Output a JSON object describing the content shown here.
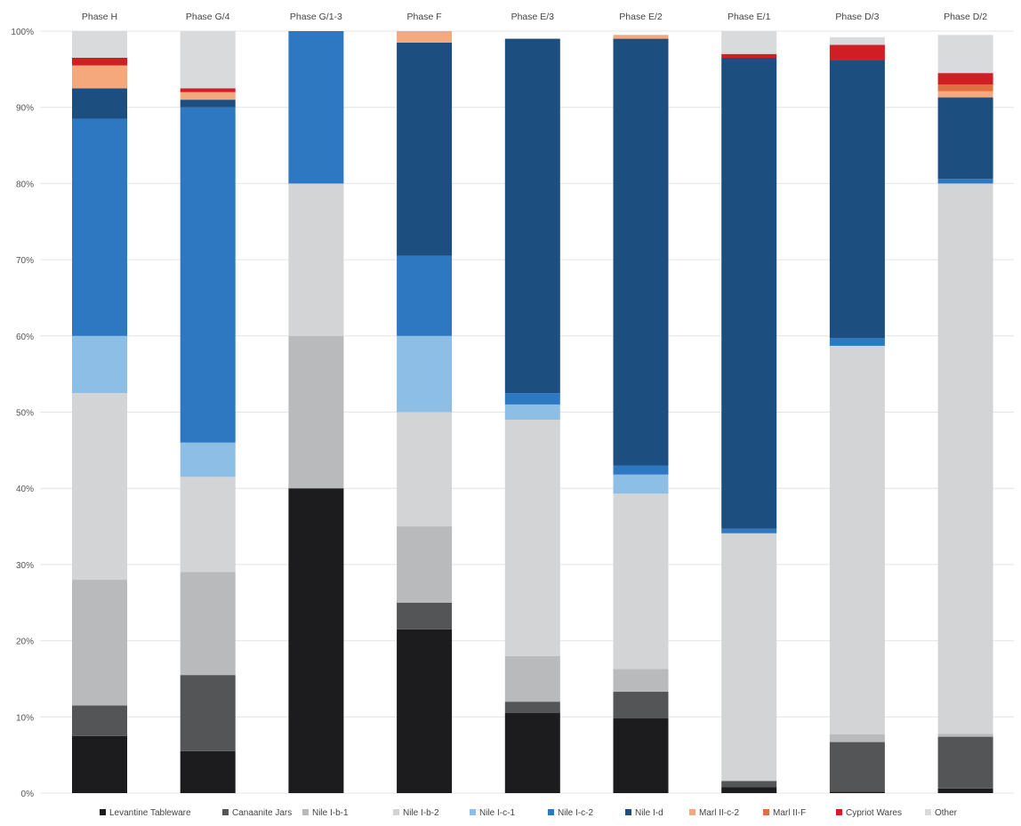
{
  "chart_data": {
    "type": "bar",
    "stacked": true,
    "percent_stacked": true,
    "title": "",
    "xlabel": "",
    "ylabel": "",
    "ylim": [
      0,
      100
    ],
    "yticks": [
      "0%",
      "10%",
      "20%",
      "30%",
      "40%",
      "50%",
      "60%",
      "70%",
      "80%",
      "90%",
      "100%"
    ],
    "category_position": "top",
    "legend_position": "bottom",
    "grid": true,
    "categories": [
      "Phase H",
      "Phase G/4",
      "Phase G/1-3",
      "Phase F",
      "Phase E/3",
      "Phase E/2",
      "Phase E/1",
      "Phase D/3",
      "Phase D/2"
    ],
    "series": [
      {
        "name": "Levantine Tableware",
        "color": "#1c1c1e",
        "values": [
          7.5,
          5.5,
          40.0,
          21.5,
          10.5,
          9.8,
          0.8,
          0.2,
          0.6
        ]
      },
      {
        "name": "Canaanite Jars",
        "color": "#545557",
        "values": [
          4.0,
          10.0,
          0.0,
          3.5,
          1.5,
          3.5,
          0.8,
          6.5,
          6.8
        ]
      },
      {
        "name": "Nile I-b-1",
        "color": "#b9babc",
        "values": [
          16.5,
          13.5,
          20.0,
          10.0,
          6.0,
          3.0,
          0.0,
          1.0,
          0.4
        ]
      },
      {
        "name": "Nile I-b-2",
        "color": "#d3d4d6",
        "values": [
          24.5,
          12.5,
          20.0,
          15.0,
          31.0,
          23.0,
          32.5,
          51.0,
          72.2
        ]
      },
      {
        "name": "Nile I-c-1",
        "color": "#8dbfe6",
        "values": [
          7.5,
          4.5,
          0.0,
          10.0,
          2.0,
          2.5,
          0.0,
          0.0,
          0.0
        ]
      },
      {
        "name": "Nile I-c-2",
        "color": "#2e78c2",
        "values": [
          28.5,
          44.0,
          20.0,
          10.5,
          1.5,
          1.2,
          0.6,
          1.0,
          0.6
        ]
      },
      {
        "name": "Nile I-d",
        "color": "#1c4e80",
        "values": [
          4.0,
          1.0,
          0.0,
          28.0,
          46.5,
          56.0,
          61.8,
          36.5,
          10.7
        ]
      },
      {
        "name": "Marl II-c-2",
        "color": "#f5a87c",
        "values": [
          3.0,
          1.0,
          0.0,
          1.5,
          0.0,
          0.5,
          0.0,
          0.0,
          0.8
        ]
      },
      {
        "name": "Marl II-F",
        "color": "#e07040",
        "values": [
          0.0,
          0.0,
          0.0,
          0.0,
          0.0,
          0.0,
          0.0,
          0.0,
          0.9
        ]
      },
      {
        "name": "Cypriot Wares",
        "color": "#d01f24",
        "values": [
          1.0,
          0.5,
          0.0,
          0.0,
          0.0,
          0.0,
          0.5,
          2.0,
          1.5
        ]
      },
      {
        "name": "Other",
        "color": "#d9dadc",
        "values": [
          3.5,
          7.5,
          0.0,
          0.0,
          0.0,
          0.0,
          3.0,
          1.0,
          5.0
        ]
      }
    ]
  }
}
